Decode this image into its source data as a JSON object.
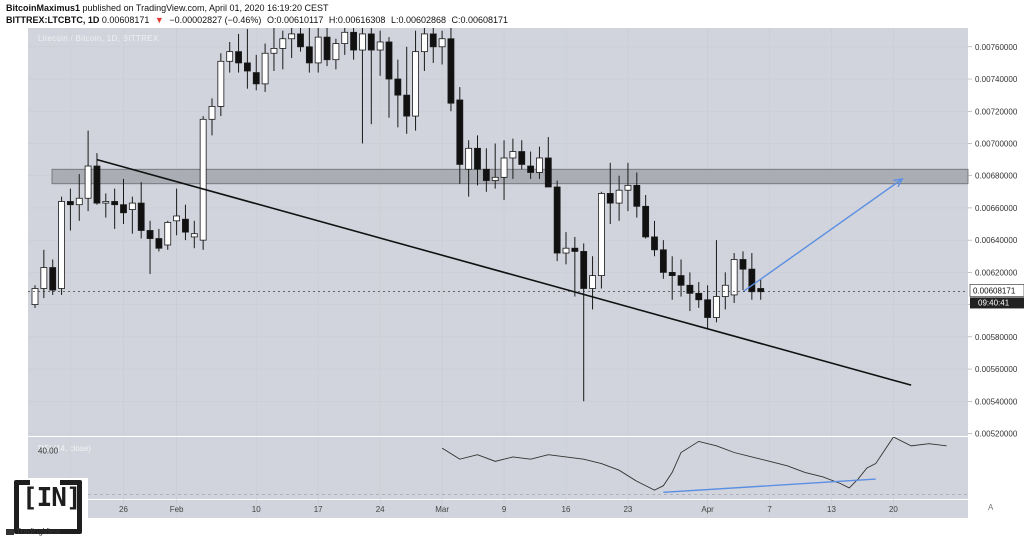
{
  "header": {
    "line1_author": "BitcoinMaximus1",
    "line1_rest": " published on TradingView.com, April 01, 2020 16:19:20 CEST",
    "symbol": "BITTREX:LTCBTC, 1D",
    "last": "0.00608171",
    "change": "−0.00002827 (−0.46%)",
    "o": "O:0.00610117",
    "h": "H:0.00616308",
    "l": "L:0.00602868",
    "c": "C:0.00608171"
  },
  "chart_subtitle": "Litecoin / Bitcoin, 1D, BITTREX",
  "rsi_label": "RSI (14, close)",
  "corner_label": "A",
  "tradingview_mark": "TradingView",
  "logo_text": "[IN]",
  "colors": {
    "panel": "#d1d4dc",
    "arrow": "#5b8fe3",
    "candle_up": "#ffffff",
    "candle_down": "#111111",
    "zone": "#a4a6ad"
  },
  "chart_data": {
    "type": "candlestick",
    "title": "Litecoin / Bitcoin, 1D, BITTREX",
    "y_ticks": [
      "0.00760000",
      "0.00740000",
      "0.00720000",
      "0.00700000",
      "0.00680000",
      "0.00660000",
      "0.00640000",
      "0.00620000",
      "0.00600000",
      "0.00580000",
      "0.00560000",
      "0.00540000",
      "0.00520000"
    ],
    "y_tick_values": [
      0.0076,
      0.0074,
      0.0072,
      0.007,
      0.0068,
      0.0066,
      0.0064,
      0.0062,
      0.006,
      0.0058,
      0.0056,
      0.0054,
      0.0052
    ],
    "ylim": [
      0.0051845,
      0.0077167
    ],
    "x_ticks": [
      "20",
      "26",
      "Feb",
      "10",
      "17",
      "24",
      "Mar",
      "9",
      "16",
      "23",
      "Apr",
      "7",
      "13",
      "20"
    ],
    "x_tick_days": [
      4,
      10,
      16,
      25,
      32,
      39,
      46,
      53,
      60,
      67,
      76,
      83,
      90,
      97
    ],
    "xlim": [
      0,
      108
    ],
    "current_price": "0.00608171",
    "countdown": "09:40:41",
    "resistance_zone": {
      "top": 0.00684,
      "bottom": 0.00675
    },
    "trendline": {
      "start": {
        "day": 7,
        "price": 0.0069
      },
      "end": {
        "day": 99,
        "price": 0.0055
      }
    },
    "projection_arrow": {
      "start": {
        "day": 80,
        "price": 0.00608
      },
      "end": {
        "day": 98,
        "price": 0.00678
      }
    },
    "candles": [
      {
        "o": 0.006,
        "h": 0.00612,
        "l": 0.00598,
        "c": 0.0061
      },
      {
        "o": 0.0061,
        "h": 0.00634,
        "l": 0.00604,
        "c": 0.00623
      },
      {
        "o": 0.00623,
        "h": 0.00628,
        "l": 0.00606,
        "c": 0.00609
      },
      {
        "o": 0.0061,
        "h": 0.00667,
        "l": 0.00606,
        "c": 0.00664
      },
      {
        "o": 0.00664,
        "h": 0.00672,
        "l": 0.00646,
        "c": 0.00662
      },
      {
        "o": 0.00662,
        "h": 0.00681,
        "l": 0.00652,
        "c": 0.00666
      },
      {
        "o": 0.00666,
        "h": 0.00708,
        "l": 0.00658,
        "c": 0.00686
      },
      {
        "o": 0.00686,
        "h": 0.00694,
        "l": 0.00662,
        "c": 0.00663
      },
      {
        "o": 0.00663,
        "h": 0.00669,
        "l": 0.00654,
        "c": 0.00664
      },
      {
        "o": 0.00664,
        "h": 0.00672,
        "l": 0.00647,
        "c": 0.00662
      },
      {
        "o": 0.00662,
        "h": 0.00678,
        "l": 0.0065,
        "c": 0.00657
      },
      {
        "o": 0.00659,
        "h": 0.00667,
        "l": 0.00644,
        "c": 0.00663
      },
      {
        "o": 0.00663,
        "h": 0.00676,
        "l": 0.00641,
        "c": 0.00646
      },
      {
        "o": 0.00646,
        "h": 0.00652,
        "l": 0.00619,
        "c": 0.00641
      },
      {
        "o": 0.00641,
        "h": 0.00647,
        "l": 0.00633,
        "c": 0.00635
      },
      {
        "o": 0.00637,
        "h": 0.00652,
        "l": 0.00634,
        "c": 0.00651
      },
      {
        "o": 0.00652,
        "h": 0.00672,
        "l": 0.00643,
        "c": 0.00655
      },
      {
        "o": 0.00653,
        "h": 0.00662,
        "l": 0.0064,
        "c": 0.00645
      },
      {
        "o": 0.00642,
        "h": 0.00652,
        "l": 0.00635,
        "c": 0.00644
      },
      {
        "o": 0.0064,
        "h": 0.00717,
        "l": 0.00634,
        "c": 0.00715
      },
      {
        "o": 0.00715,
        "h": 0.00728,
        "l": 0.00705,
        "c": 0.00723
      },
      {
        "o": 0.00723,
        "h": 0.00756,
        "l": 0.00717,
        "c": 0.00751
      },
      {
        "o": 0.00751,
        "h": 0.00763,
        "l": 0.00744,
        "c": 0.00757
      },
      {
        "o": 0.00757,
        "h": 0.00768,
        "l": 0.00744,
        "c": 0.0075
      },
      {
        "o": 0.0075,
        "h": 0.00771,
        "l": 0.00734,
        "c": 0.00745
      },
      {
        "o": 0.00744,
        "h": 0.00755,
        "l": 0.00733,
        "c": 0.00737
      },
      {
        "o": 0.00737,
        "h": 0.00762,
        "l": 0.00732,
        "c": 0.00756
      },
      {
        "o": 0.00756,
        "h": 0.00774,
        "l": 0.00745,
        "c": 0.00759
      },
      {
        "o": 0.00759,
        "h": 0.0077,
        "l": 0.00746,
        "c": 0.00765
      },
      {
        "o": 0.00765,
        "h": 0.00778,
        "l": 0.00753,
        "c": 0.00768
      },
      {
        "o": 0.00768,
        "h": 0.00782,
        "l": 0.00757,
        "c": 0.0076
      },
      {
        "o": 0.0076,
        "h": 0.00775,
        "l": 0.00744,
        "c": 0.0075
      },
      {
        "o": 0.0075,
        "h": 0.00778,
        "l": 0.00744,
        "c": 0.00766
      },
      {
        "o": 0.00766,
        "h": 0.00772,
        "l": 0.00748,
        "c": 0.00752
      },
      {
        "o": 0.00752,
        "h": 0.00765,
        "l": 0.00746,
        "c": 0.00762
      },
      {
        "o": 0.00762,
        "h": 0.00773,
        "l": 0.00755,
        "c": 0.00769
      },
      {
        "o": 0.00769,
        "h": 0.00778,
        "l": 0.00752,
        "c": 0.00758
      },
      {
        "o": 0.00758,
        "h": 0.00772,
        "l": 0.007,
        "c": 0.00768
      },
      {
        "o": 0.00768,
        "h": 0.00775,
        "l": 0.00712,
        "c": 0.00758
      },
      {
        "o": 0.00758,
        "h": 0.0077,
        "l": 0.00742,
        "c": 0.00763
      },
      {
        "o": 0.00763,
        "h": 0.00766,
        "l": 0.00716,
        "c": 0.0074
      },
      {
        "o": 0.0074,
        "h": 0.00752,
        "l": 0.0071,
        "c": 0.0073
      },
      {
        "o": 0.0073,
        "h": 0.0076,
        "l": 0.00706,
        "c": 0.00717
      },
      {
        "o": 0.00717,
        "h": 0.0077,
        "l": 0.00708,
        "c": 0.00757
      },
      {
        "o": 0.00757,
        "h": 0.00782,
        "l": 0.00745,
        "c": 0.00768
      },
      {
        "o": 0.00768,
        "h": 0.00777,
        "l": 0.0075,
        "c": 0.0076
      },
      {
        "o": 0.0076,
        "h": 0.0077,
        "l": 0.00749,
        "c": 0.00765
      },
      {
        "o": 0.00765,
        "h": 0.00775,
        "l": 0.0072,
        "c": 0.00725
      },
      {
        "o": 0.00727,
        "h": 0.00735,
        "l": 0.00675,
        "c": 0.00687
      },
      {
        "o": 0.00684,
        "h": 0.00702,
        "l": 0.00667,
        "c": 0.00697
      },
      {
        "o": 0.00697,
        "h": 0.00705,
        "l": 0.00674,
        "c": 0.00684
      },
      {
        "o": 0.00684,
        "h": 0.00697,
        "l": 0.0067,
        "c": 0.00677
      },
      {
        "o": 0.00677,
        "h": 0.007,
        "l": 0.00672,
        "c": 0.00679
      },
      {
        "o": 0.00679,
        "h": 0.00702,
        "l": 0.00665,
        "c": 0.00691
      },
      {
        "o": 0.00691,
        "h": 0.00703,
        "l": 0.00678,
        "c": 0.00695
      },
      {
        "o": 0.00695,
        "h": 0.00702,
        "l": 0.00684,
        "c": 0.00687
      },
      {
        "o": 0.00686,
        "h": 0.00695,
        "l": 0.00678,
        "c": 0.00682
      },
      {
        "o": 0.00682,
        "h": 0.00698,
        "l": 0.00678,
        "c": 0.00691
      },
      {
        "o": 0.00691,
        "h": 0.00704,
        "l": 0.00674,
        "c": 0.00673
      },
      {
        "o": 0.00673,
        "h": 0.00677,
        "l": 0.00627,
        "c": 0.00632
      },
      {
        "o": 0.00632,
        "h": 0.00645,
        "l": 0.00625,
        "c": 0.00635
      },
      {
        "o": 0.00635,
        "h": 0.00642,
        "l": 0.00605,
        "c": 0.00633
      },
      {
        "o": 0.00633,
        "h": 0.00638,
        "l": 0.0054,
        "c": 0.0061
      },
      {
        "o": 0.0061,
        "h": 0.0063,
        "l": 0.00597,
        "c": 0.00618
      },
      {
        "o": 0.00618,
        "h": 0.0067,
        "l": 0.0061,
        "c": 0.00669
      },
      {
        "o": 0.00669,
        "h": 0.00688,
        "l": 0.0065,
        "c": 0.00663
      },
      {
        "o": 0.00663,
        "h": 0.0068,
        "l": 0.00652,
        "c": 0.00671
      },
      {
        "o": 0.00671,
        "h": 0.00688,
        "l": 0.00658,
        "c": 0.00674
      },
      {
        "o": 0.00674,
        "h": 0.00682,
        "l": 0.00654,
        "c": 0.00661
      },
      {
        "o": 0.00661,
        "h": 0.00668,
        "l": 0.00641,
        "c": 0.00642
      },
      {
        "o": 0.00642,
        "h": 0.00652,
        "l": 0.0063,
        "c": 0.00634
      },
      {
        "o": 0.00634,
        "h": 0.0064,
        "l": 0.00616,
        "c": 0.0062
      },
      {
        "o": 0.0062,
        "h": 0.0063,
        "l": 0.00603,
        "c": 0.00618
      },
      {
        "o": 0.00618,
        "h": 0.00628,
        "l": 0.00605,
        "c": 0.00612
      },
      {
        "o": 0.00612,
        "h": 0.0062,
        "l": 0.00596,
        "c": 0.00607
      },
      {
        "o": 0.00607,
        "h": 0.00614,
        "l": 0.00598,
        "c": 0.00603
      },
      {
        "o": 0.00603,
        "h": 0.00612,
        "l": 0.00585,
        "c": 0.00592
      },
      {
        "o": 0.00592,
        "h": 0.0064,
        "l": 0.00589,
        "c": 0.00605
      },
      {
        "o": 0.00605,
        "h": 0.0062,
        "l": 0.00597,
        "c": 0.00612
      },
      {
        "o": 0.00606,
        "h": 0.00632,
        "l": 0.00601,
        "c": 0.00628
      },
      {
        "o": 0.00628,
        "h": 0.00633,
        "l": 0.00609,
        "c": 0.00622
      },
      {
        "o": 0.00622,
        "h": 0.00632,
        "l": 0.00603,
        "c": 0.00608
      },
      {
        "o": 0.0061,
        "h": 0.00616,
        "l": 0.00603,
        "c": 0.00608
      }
    ],
    "rsi": {
      "label": "RSI (14, close)",
      "y_tick": "40.00",
      "visible_points": [
        [
          46,
          41
        ],
        [
          48,
          36
        ],
        [
          50,
          38
        ],
        [
          52,
          35
        ],
        [
          54,
          37
        ],
        [
          56,
          36
        ],
        [
          58,
          38
        ],
        [
          60,
          37
        ],
        [
          62,
          36
        ],
        [
          64,
          34
        ],
        [
          66,
          31
        ],
        [
          68,
          26
        ],
        [
          70,
          22
        ],
        [
          71,
          24
        ],
        [
          72,
          30
        ],
        [
          73,
          39
        ],
        [
          75,
          44
        ],
        [
          77,
          42
        ],
        [
          79,
          39
        ],
        [
          81,
          37
        ],
        [
          83,
          35
        ],
        [
          85,
          33
        ],
        [
          87,
          30
        ],
        [
          89,
          28
        ],
        [
          91,
          25
        ],
        [
          92,
          23
        ],
        [
          93,
          27
        ],
        [
          94,
          32
        ],
        [
          95,
          34
        ],
        [
          96,
          40
        ],
        [
          97,
          46
        ],
        [
          99,
          42
        ],
        [
          101,
          43
        ],
        [
          103,
          42
        ]
      ],
      "divergence_line": {
        "start": {
          "day": 71,
          "rsi": 21
        },
        "end": {
          "day": 95,
          "rsi": 27
        }
      }
    }
  }
}
